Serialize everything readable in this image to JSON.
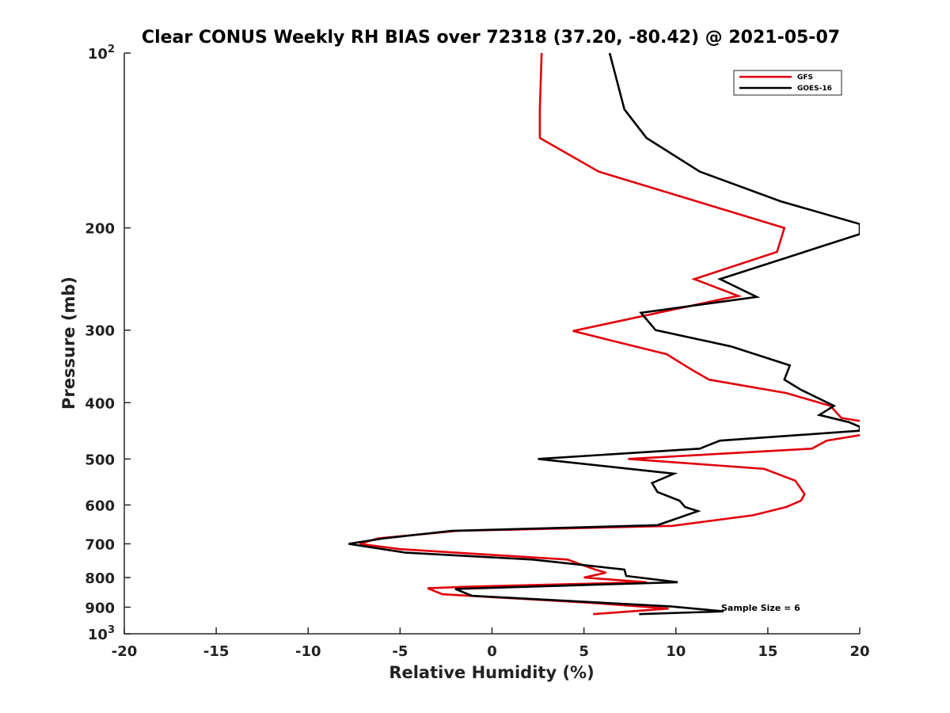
{
  "chart_data": {
    "type": "line",
    "title": "Clear CONUS Weekly RH BIAS over 72318 (37.20, -80.42) @ 2021-05-07",
    "xlabel": "Relative Humidity (%)",
    "ylabel": "Pressure (mb)",
    "xlim": [
      -20,
      20
    ],
    "ylim": [
      100,
      1000
    ],
    "y_scale": "log",
    "y_reversed": true,
    "x_ticks": [
      "-20",
      "-15",
      "-10",
      "-5",
      "0",
      "5",
      "10",
      "15",
      "20"
    ],
    "y_ticks": [
      {
        "value": 100,
        "base": "10",
        "exp": "2"
      },
      {
        "value": 200,
        "label": "200"
      },
      {
        "value": 300,
        "label": "300"
      },
      {
        "value": 400,
        "label": "400"
      },
      {
        "value": 500,
        "label": "500"
      },
      {
        "value": 600,
        "label": "600"
      },
      {
        "value": 700,
        "label": "700"
      },
      {
        "value": 800,
        "label": "800"
      },
      {
        "value": 900,
        "label": "900"
      },
      {
        "value": 1000,
        "base": "10",
        "exp": "3"
      }
    ],
    "grid": false,
    "legend_position": "top-right",
    "annotation": "Sample Size = 6",
    "series": [
      {
        "name": "GFS",
        "color": "#e0000b",
        "points": [
          {
            "x": 2.7,
            "p": 100
          },
          {
            "x": 2.6,
            "p": 125
          },
          {
            "x": 2.6,
            "p": 140
          },
          {
            "x": 5.8,
            "p": 160
          },
          {
            "x": 15.9,
            "p": 200
          },
          {
            "x": 15.5,
            "p": 220
          },
          {
            "x": 11.0,
            "p": 245
          },
          {
            "x": 13.4,
            "p": 262
          },
          {
            "x": 12.6,
            "p": 265
          },
          {
            "x": 4.4,
            "p": 301
          },
          {
            "x": 9.5,
            "p": 330
          },
          {
            "x": 10.8,
            "p": 350
          },
          {
            "x": 11.8,
            "p": 365
          },
          {
            "x": 16.0,
            "p": 385
          },
          {
            "x": 18.4,
            "p": 405
          },
          {
            "x": 19.0,
            "p": 425
          },
          {
            "x": 20.0,
            "p": 430
          },
          {
            "x": 20.5,
            "p": 437
          },
          {
            "x": 20.0,
            "p": 455
          },
          {
            "x": 18.2,
            "p": 465
          },
          {
            "x": 17.4,
            "p": 480
          },
          {
            "x": 7.4,
            "p": 500
          },
          {
            "x": 14.8,
            "p": 520
          },
          {
            "x": 16.5,
            "p": 545
          },
          {
            "x": 17.0,
            "p": 575
          },
          {
            "x": 16.8,
            "p": 590
          },
          {
            "x": 16.0,
            "p": 605
          },
          {
            "x": 14.2,
            "p": 625
          },
          {
            "x": 9.8,
            "p": 652
          },
          {
            "x": -1.9,
            "p": 665
          },
          {
            "x": -6.2,
            "p": 685
          },
          {
            "x": -7.2,
            "p": 700
          },
          {
            "x": -5.0,
            "p": 715
          },
          {
            "x": 4.1,
            "p": 745
          },
          {
            "x": 5.6,
            "p": 775
          },
          {
            "x": 6.2,
            "p": 785
          },
          {
            "x": 5.0,
            "p": 800
          },
          {
            "x": 8.4,
            "p": 815
          },
          {
            "x": -1.5,
            "p": 830
          },
          {
            "x": -3.5,
            "p": 835
          },
          {
            "x": -2.7,
            "p": 855
          },
          {
            "x": 5.5,
            "p": 885
          },
          {
            "x": 9.6,
            "p": 905
          },
          {
            "x": 5.5,
            "p": 925
          }
        ]
      },
      {
        "name": "GOES-16",
        "color": "#000000",
        "points": [
          {
            "x": 6.4,
            "p": 100
          },
          {
            "x": 7.2,
            "p": 125
          },
          {
            "x": 8.4,
            "p": 140
          },
          {
            "x": 11.3,
            "p": 160
          },
          {
            "x": 15.7,
            "p": 180
          },
          {
            "x": 20.0,
            "p": 197
          },
          {
            "x": 20.0,
            "p": 205
          },
          {
            "x": 12.4,
            "p": 245
          },
          {
            "x": 14.4,
            "p": 263
          },
          {
            "x": 8.1,
            "p": 280
          },
          {
            "x": 8.9,
            "p": 300
          },
          {
            "x": 13.0,
            "p": 320
          },
          {
            "x": 16.2,
            "p": 345
          },
          {
            "x": 15.9,
            "p": 365
          },
          {
            "x": 16.8,
            "p": 380
          },
          {
            "x": 18.6,
            "p": 405
          },
          {
            "x": 17.8,
            "p": 420
          },
          {
            "x": 19.4,
            "p": 432
          },
          {
            "x": 20.0,
            "p": 440
          },
          {
            "x": 20.0,
            "p": 447
          },
          {
            "x": 12.4,
            "p": 465
          },
          {
            "x": 11.3,
            "p": 480
          },
          {
            "x": 2.5,
            "p": 500
          },
          {
            "x": 9.9,
            "p": 530
          },
          {
            "x": 8.7,
            "p": 550
          },
          {
            "x": 9.0,
            "p": 570
          },
          {
            "x": 10.2,
            "p": 590
          },
          {
            "x": 10.5,
            "p": 605
          },
          {
            "x": 11.2,
            "p": 615
          },
          {
            "x": 9.0,
            "p": 650
          },
          {
            "x": -2.2,
            "p": 665
          },
          {
            "x": -5.9,
            "p": 685
          },
          {
            "x": -7.8,
            "p": 700
          },
          {
            "x": -4.7,
            "p": 725
          },
          {
            "x": 2.2,
            "p": 745
          },
          {
            "x": 7.2,
            "p": 775
          },
          {
            "x": 7.3,
            "p": 795
          },
          {
            "x": 10.1,
            "p": 815
          },
          {
            "x": -2.0,
            "p": 837
          },
          {
            "x": -1.1,
            "p": 860
          },
          {
            "x": 9.7,
            "p": 897
          },
          {
            "x": 12.6,
            "p": 915
          },
          {
            "x": 8.0,
            "p": 925
          }
        ]
      }
    ]
  }
}
